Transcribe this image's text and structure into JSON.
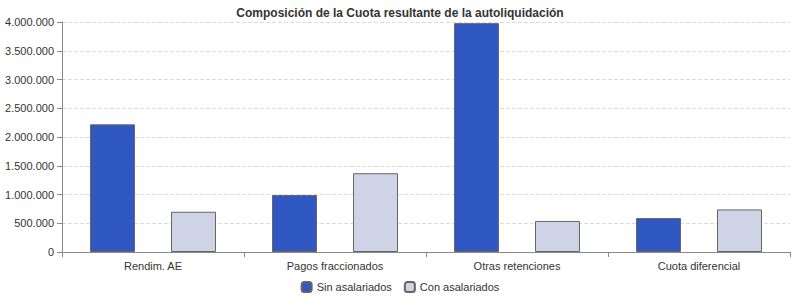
{
  "chart_data": {
    "type": "bar",
    "title": "Composición de la Cuota resultante de la autoliquidación",
    "categories": [
      "Rendim. AE",
      "Pagos fraccionados",
      "Otras retenciones",
      "Cuota diferencial"
    ],
    "series": [
      {
        "name": "Sin asalariados",
        "color": "#2f58c2",
        "values": [
          2220000,
          990000,
          3980000,
          590000
        ]
      },
      {
        "name": "Con asalariados",
        "color": "#cfd3e6",
        "values": [
          700000,
          1370000,
          540000,
          740000
        ]
      }
    ],
    "ylim": [
      0,
      4000000
    ],
    "yticks": [
      0,
      {
        "value": 500000,
        "label": "500.000"
      },
      {
        "value": 1000000,
        "label": "1.000.000"
      },
      {
        "value": 1500000,
        "label": "1.500.000"
      },
      {
        "value": 2000000,
        "label": "2.000.000"
      },
      {
        "value": 2500000,
        "label": "2.500.000"
      },
      {
        "value": 3000000,
        "label": "3.000.000"
      },
      {
        "value": 3500000,
        "label": "3.500.000"
      },
      {
        "value": 4000000,
        "label": "4.000.000"
      }
    ],
    "grid": true,
    "legend": "bottom"
  }
}
